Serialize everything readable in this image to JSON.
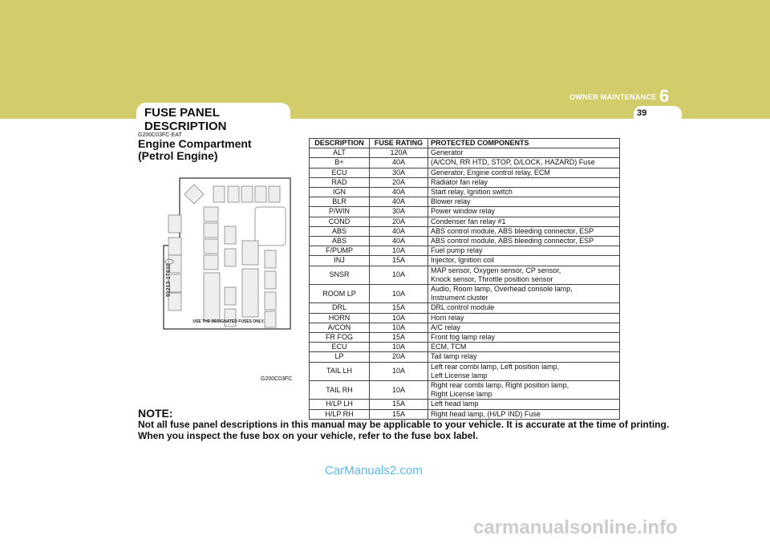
{
  "header": {
    "section": "OWNER MAINTENANCE",
    "chapter": "6",
    "page": "39",
    "tab_title": "FUSE PANEL DESCRIPTION",
    "band_color": "#d3cc6b"
  },
  "content": {
    "code": "G200C03FC-EAT",
    "title_line1": "Engine Compartment",
    "title_line2": "(Petrol Engine)",
    "figure_code": "G200C03FC",
    "diagram": {
      "part_number": "91213-1T610",
      "warning": "USE THE DESIGNATED FUSES ONLY."
    }
  },
  "table": {
    "headers": [
      "DESCRIPTION",
      "FUSE RATING",
      "PROTECTED COMPONENTS"
    ],
    "rows": [
      [
        "ALT",
        "120A",
        "Generator"
      ],
      [
        "B+",
        "40A",
        "(A/CON, RR HTD, STOP, D/LOCK, HAZARD) Fuse"
      ],
      [
        "ECU",
        "30A",
        "Generator, Engine control relay, ECM"
      ],
      [
        "RAD",
        "20A",
        "Radiator fan relay"
      ],
      [
        "IGN",
        "40A",
        "Start relay, Ignition switch"
      ],
      [
        "BLR",
        "40A",
        "Blower relay"
      ],
      [
        "P/WIN",
        "30A",
        "Power window relay"
      ],
      [
        "COND",
        "20A",
        "Condenser fan relay #1"
      ],
      [
        "ABS",
        "40A",
        "ABS control module, ABS bleeding connector, ESP"
      ],
      [
        "ABS",
        "40A",
        "ABS control module, ABS bleeding connector, ESP"
      ],
      [
        "F/PUMP",
        "10A",
        "Fuel pump relay"
      ],
      [
        "INJ",
        "15A",
        "Injector, Ignition coil"
      ],
      [
        "SNSR",
        "10A",
        "MAP sensor, Oxygen sensor, CP sensor,",
        "Knock sensor, Throttle position sensor"
      ],
      [
        "ROOM LP",
        "10A",
        "Audio, Room lamp, Overhead console lamp,",
        "Instrument cluster"
      ],
      [
        "DRL",
        "15A",
        "DRL control module"
      ],
      [
        "HORN",
        "10A",
        "Horn relay"
      ],
      [
        "A/CON",
        "10A",
        "A/C relay"
      ],
      [
        "FR FOG",
        "15A",
        "Front fog lamp relay"
      ],
      [
        "ECU",
        "10A",
        "ECM, TCM"
      ],
      [
        "LP",
        "20A",
        "Tail lamp relay"
      ],
      [
        "TAIL LH",
        "10A",
        "Left rear combi lamp, Left position lamp,",
        "Left License lamp"
      ],
      [
        "TAIL RH",
        "10A",
        "Right rear combi lamp, Right position lamp,",
        "Right License lamp"
      ],
      [
        "H/LP LH",
        "15A",
        "Left head lamp"
      ],
      [
        "H/LP RH",
        "15A",
        "Right head lamp, (H/LP IND) Fuse"
      ]
    ]
  },
  "note": {
    "heading": "NOTE:",
    "line1": "Not all fuse panel descriptions in this manual may be applicable to your vehicle. It is accurate at the time of printing.",
    "line2": "When you inspect the fuse box on your vehicle, refer to the fuse box label."
  },
  "watermarks": {
    "top": "CarManuals2.com",
    "bottom": "carmanualsonline.info"
  }
}
